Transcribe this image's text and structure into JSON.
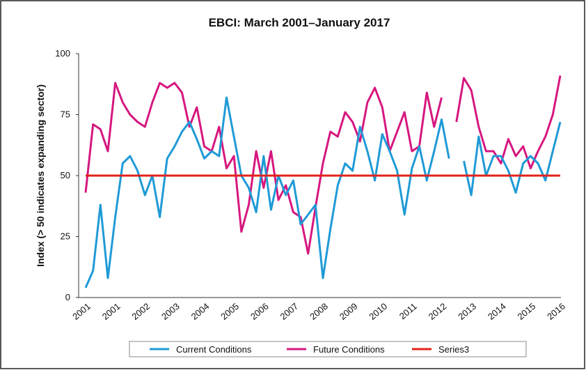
{
  "chart_data": {
    "type": "line",
    "title": "EBCI: March 2001–January 2017",
    "y_label": "Index (> 50 indicates expanding sector)",
    "categories": [
      "2001",
      null,
      null,
      null,
      "2001",
      null,
      null,
      null,
      "2002",
      null,
      null,
      null,
      "2003",
      null,
      null,
      null,
      "2004",
      null,
      null,
      null,
      "2005",
      null,
      null,
      null,
      "2006",
      null,
      null,
      null,
      "2007",
      null,
      null,
      null,
      "2008",
      null,
      null,
      null,
      "2009",
      null,
      null,
      null,
      "2010",
      null,
      null,
      null,
      "2011",
      null,
      null,
      null,
      "2012",
      null,
      null,
      null,
      "2013",
      null,
      null,
      null,
      "2014",
      null,
      null,
      null,
      "2015",
      null,
      null,
      null,
      "2016"
    ],
    "series": [
      {
        "name": "Current Conditions",
        "color": "#1f9ad6",
        "values": [
          4,
          11,
          38,
          8,
          33,
          55,
          58,
          52,
          42,
          50,
          33,
          57,
          62,
          68,
          72,
          65,
          57,
          60,
          58,
          82,
          66,
          50,
          45,
          35,
          58,
          36,
          50,
          42,
          48,
          30,
          34,
          38,
          8,
          28,
          46,
          55,
          52,
          70,
          60,
          48,
          67,
          60,
          52,
          34,
          53,
          62,
          48,
          60,
          73,
          57,
          null,
          56,
          42,
          66,
          50,
          58,
          58,
          52,
          43,
          55,
          58,
          55,
          48,
          60,
          72
        ]
      },
      {
        "name": "Future Conditions",
        "color": "#d6177f",
        "values": [
          43,
          71,
          69,
          60,
          88,
          80,
          75,
          72,
          70,
          80,
          88,
          86,
          88,
          84,
          70,
          78,
          62,
          60,
          70,
          53,
          58,
          27,
          38,
          60,
          45,
          60,
          40,
          46,
          35,
          33,
          18,
          37,
          55,
          68,
          66,
          76,
          72,
          64,
          80,
          86,
          78,
          60,
          68,
          76,
          60,
          62,
          84,
          70,
          82,
          null,
          72,
          90,
          85,
          70,
          60,
          60,
          55,
          65,
          58,
          62,
          53,
          60,
          66,
          75,
          91
        ]
      },
      {
        "name": "Series3",
        "color": "#e2231a",
        "values": [
          50,
          50,
          50,
          50,
          50,
          50,
          50,
          50,
          50,
          50,
          50,
          50,
          50,
          50,
          50,
          50,
          50,
          50,
          50,
          50,
          50,
          50,
          50,
          50,
          50,
          50,
          50,
          50,
          50,
          50,
          50,
          50,
          50,
          50,
          50,
          50,
          50,
          50,
          50,
          50,
          50,
          50,
          50,
          50,
          50,
          50,
          50,
          50,
          50,
          50,
          50,
          50,
          50,
          50,
          50,
          50,
          50,
          50,
          50,
          50,
          50,
          50,
          50,
          50,
          50
        ]
      }
    ],
    "ylim": [
      0,
      100
    ],
    "yticks": [
      0,
      25,
      50,
      75,
      100
    ],
    "grid": false,
    "legend": "bottom"
  }
}
